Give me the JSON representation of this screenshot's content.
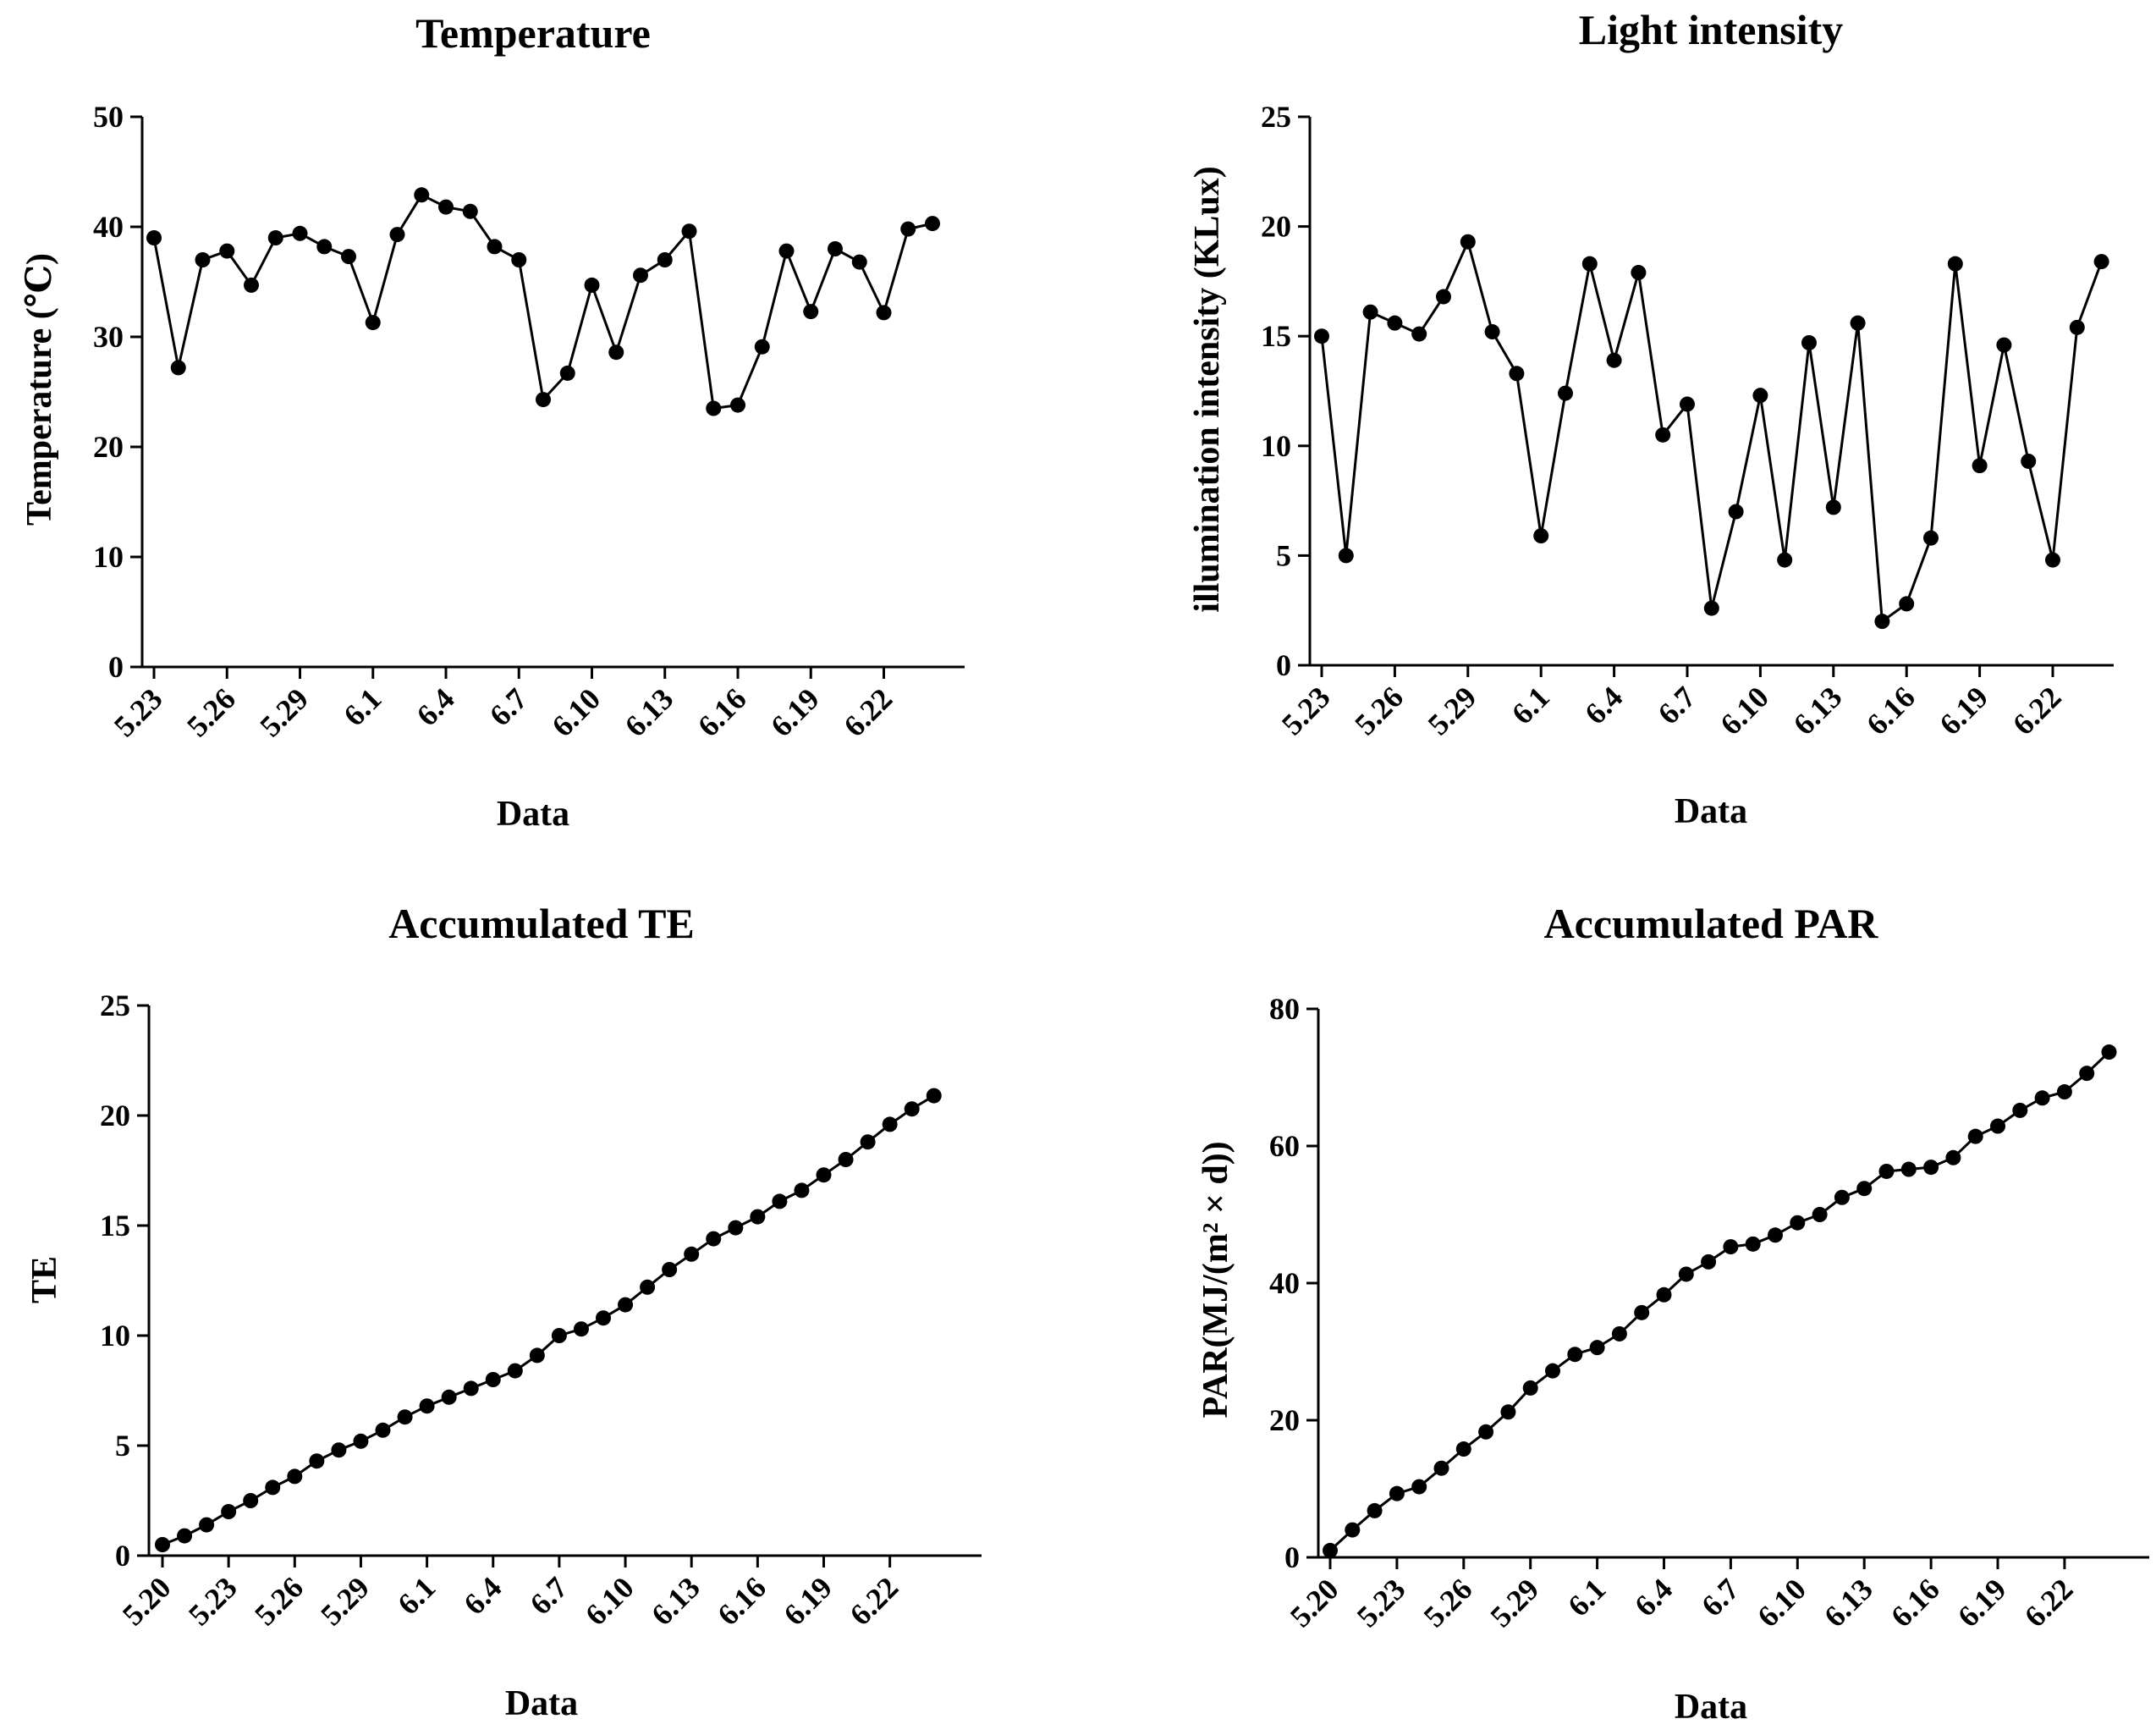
{
  "colors": {
    "line": "#000000",
    "marker": "#000000",
    "background": "#ffffff"
  },
  "chart_data": [
    {
      "type": "line",
      "title": "Temperature",
      "xlabel": "Data",
      "ylabel": "Temperature (℃)",
      "ylim": [
        0,
        50
      ],
      "yticks": [
        "0",
        "10",
        "20",
        "30",
        "40",
        "50"
      ],
      "xtick_labels": [
        "5.23",
        "5.26",
        "5.29",
        "6.1",
        "6.4",
        "6.7",
        "6.10",
        "6.13",
        "6.16",
        "6.19",
        "6.22"
      ],
      "xtick_index": [
        0,
        3,
        6,
        9,
        12,
        15,
        18,
        21,
        24,
        27,
        30
      ],
      "values": [
        39,
        27.2,
        37,
        37.8,
        34.7,
        39,
        39.4,
        38.2,
        37.3,
        31.3,
        39.3,
        42.9,
        41.8,
        41.4,
        38.2,
        37,
        24.3,
        26.7,
        34.7,
        28.6,
        35.6,
        37,
        39.6,
        23.5,
        23.8,
        29.1,
        37.8,
        32.3,
        38,
        36.8,
        32.2,
        39.8,
        40.3
      ]
    },
    {
      "type": "line",
      "title": "Light intensity",
      "xlabel": "Data",
      "ylabel": "illumination intensity (KLux)",
      "ylim": [
        0,
        25
      ],
      "yticks": [
        "0",
        "5",
        "10",
        "15",
        "20",
        "25"
      ],
      "xtick_labels": [
        "5.23",
        "5.26",
        "5.29",
        "6.1",
        "6.4",
        "6.7",
        "6.10",
        "6.13",
        "6.16",
        "6.19",
        "6.22"
      ],
      "xtick_index": [
        0,
        3,
        6,
        9,
        12,
        15,
        18,
        21,
        24,
        27,
        30
      ],
      "values": [
        15,
        5,
        16.1,
        15.6,
        15.1,
        16.8,
        19.3,
        15.2,
        13.3,
        5.9,
        12.4,
        18.3,
        13.9,
        17.9,
        10.5,
        11.9,
        2.6,
        7,
        12.3,
        4.8,
        14.7,
        7.2,
        15.6,
        2,
        2.8,
        5.8,
        18.3,
        9.1,
        14.6,
        9.3,
        4.8,
        15.4,
        18.4
      ]
    },
    {
      "type": "line",
      "title": "Accumulated TE",
      "xlabel": "Data",
      "ylabel": "TE",
      "ylim": [
        0,
        25
      ],
      "yticks": [
        "0",
        "5",
        "10",
        "15",
        "20",
        "25"
      ],
      "xtick_labels": [
        "5.20",
        "5.23",
        "5.26",
        "5.29",
        "6.1",
        "6.4",
        "6.7",
        "6.10",
        "6.13",
        "6.16",
        "6.19",
        "6.22"
      ],
      "xtick_index": [
        0,
        3,
        6,
        9,
        12,
        15,
        18,
        21,
        24,
        27,
        30,
        33
      ],
      "values": [
        0.5,
        0.9,
        1.4,
        2.0,
        2.5,
        3.1,
        3.6,
        4.3,
        4.8,
        5.2,
        5.7,
        6.3,
        6.8,
        7.2,
        7.6,
        8.0,
        8.4,
        9.1,
        10.0,
        10.3,
        10.8,
        11.4,
        12.2,
        13.0,
        13.7,
        14.4,
        14.9,
        15.4,
        16.1,
        16.6,
        17.3,
        18.0,
        18.8,
        19.6,
        20.3,
        20.9
      ]
    },
    {
      "type": "line",
      "title": "Accumulated PAR",
      "xlabel": "Data",
      "ylabel": "PAR(MJ/(m² × d))",
      "ylim": [
        0,
        80
      ],
      "yticks": [
        "0",
        "20",
        "40",
        "60",
        "80"
      ],
      "xtick_labels": [
        "5.20",
        "5.23",
        "5.26",
        "5.29",
        "6.1",
        "6.4",
        "6.7",
        "6.10",
        "6.13",
        "6.16",
        "6.19",
        "6.22"
      ],
      "xtick_index": [
        0,
        3,
        6,
        9,
        12,
        15,
        18,
        21,
        24,
        27,
        30,
        33
      ],
      "values": [
        1,
        4,
        6.8,
        9.3,
        10.3,
        13,
        15.8,
        18.3,
        21.2,
        24.7,
        27.2,
        29.6,
        30.6,
        32.6,
        35.7,
        38.3,
        41.3,
        43.1,
        45.3,
        45.7,
        47,
        48.8,
        50,
        52.5,
        53.8,
        56.3,
        56.6,
        56.9,
        58.3,
        61.4,
        62.9,
        65.2,
        67,
        67.9,
        70.6,
        73.7
      ]
    }
  ]
}
